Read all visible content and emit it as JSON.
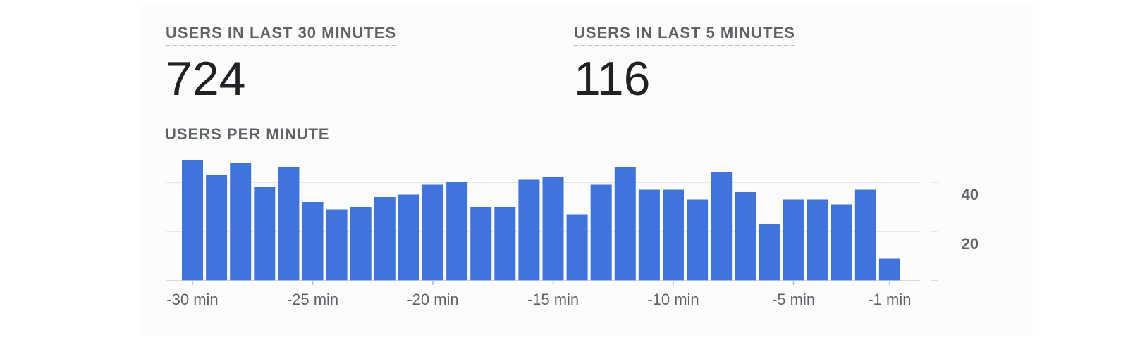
{
  "metrics": {
    "last30": {
      "label": "USERS IN LAST 30 MINUTES",
      "value": "724"
    },
    "last5": {
      "label": "USERS IN LAST 5 MINUTES",
      "value": "116"
    }
  },
  "colors": {
    "bar": "#3f74dd",
    "grid": "#e0e0e0",
    "text": "#5f6368"
  },
  "chart_data": {
    "type": "bar",
    "title": "USERS PER MINUTE",
    "x": [
      -30,
      -29,
      -28,
      -27,
      -26,
      -25,
      -24,
      -23,
      -22,
      -21,
      -20,
      -19,
      -18,
      -17,
      -16,
      -15,
      -14,
      -13,
      -12,
      -11,
      -10,
      -9,
      -8,
      -7,
      -6,
      -5,
      -4,
      -3,
      -2,
      -1
    ],
    "values": [
      49,
      43,
      48,
      38,
      46,
      32,
      29,
      30,
      34,
      35,
      39,
      40,
      30,
      30,
      41,
      42,
      27,
      39,
      46,
      37,
      37,
      33,
      44,
      36,
      23,
      33,
      33,
      31,
      37,
      9
    ],
    "xticks": [
      {
        "label": "-30 min",
        "at": -30
      },
      {
        "label": "-25 min",
        "at": -25
      },
      {
        "label": "-20 min",
        "at": -20
      },
      {
        "label": "-15 min",
        "at": -15
      },
      {
        "label": "-10 min",
        "at": -10
      },
      {
        "label": "-5 min",
        "at": -5
      },
      {
        "label": "-1 min",
        "at": -1
      }
    ],
    "yticks": [
      {
        "label": "40",
        "value": 40
      },
      {
        "label": "20",
        "value": 20
      }
    ],
    "ylim": [
      0,
      50
    ],
    "grid": true,
    "y_axis_position": "right"
  }
}
